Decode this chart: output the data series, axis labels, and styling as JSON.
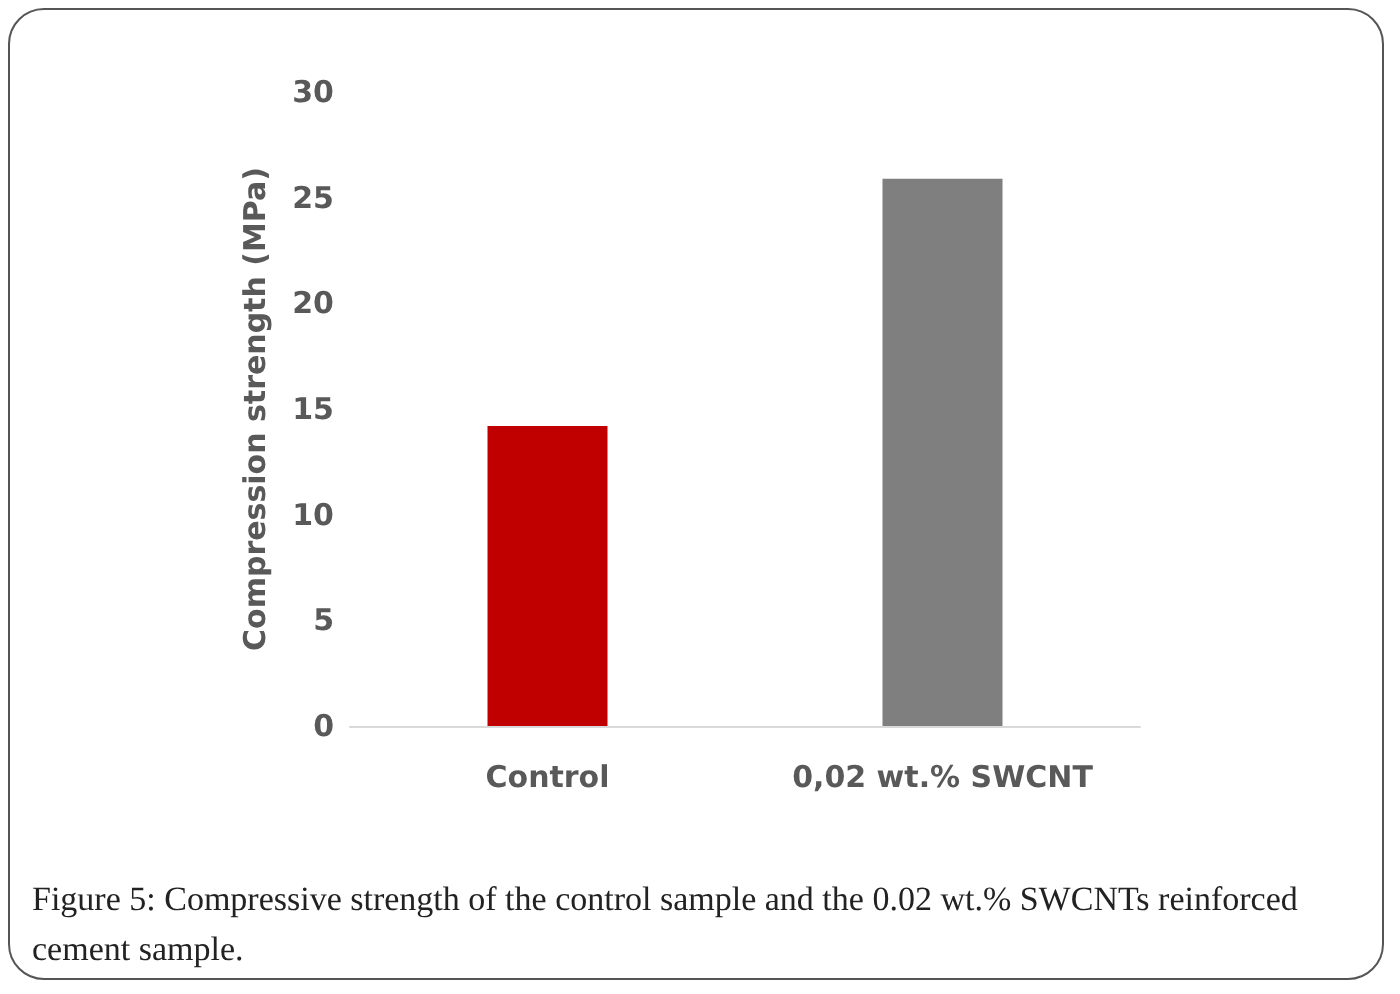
{
  "chart_data": {
    "type": "bar",
    "ylabel": "Compression strength (MPa)",
    "categories": [
      "Control",
      "0,02 wt.% SWCNT"
    ],
    "values": [
      14.2,
      25.9
    ],
    "colors": [
      "#c00000",
      "#7f7f7f"
    ],
    "ylim": [
      0,
      30
    ],
    "yticks": [
      0,
      5,
      10,
      15,
      20,
      25,
      30
    ],
    "grid": false,
    "annotations": [
      "Figure 5: Compressive strength of the control sample and the 0.02 wt.% SWCNTs reinforced cement sample."
    ]
  }
}
